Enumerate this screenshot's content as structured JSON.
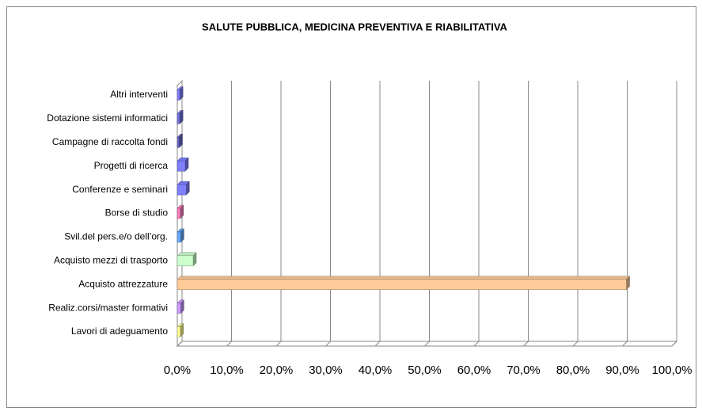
{
  "chart_data": {
    "type": "bar",
    "orientation": "horizontal",
    "title": "SALUTE PUBBLICA, MEDICINA PREVENTIVA E RIABILITATIVA",
    "categories": [
      "Altri interventi",
      "Dotazione sistemi informatici",
      "Campagne di raccolta fondi",
      "Progetti di ricerca",
      "Conferenze e seminari",
      "Borse di studio",
      "Svil.del pers.e/o dell’org.",
      "Acquisto mezzi di trasporto",
      "Acquisto attrezzature",
      "Realiz.corsi/master formativi",
      "Lavori di adeguamento"
    ],
    "values": [
      0.5,
      0.5,
      0.4,
      1.6,
      1.8,
      0.6,
      0.7,
      3.2,
      90.8,
      0.7,
      0.6
    ],
    "colors": [
      "#8080ff",
      "#7373e0",
      "#6a6acc",
      "#8080ff",
      "#8080ff",
      "#ff80c0",
      "#66aaff",
      "#ccffcc",
      "#ffcc99",
      "#cc99ff",
      "#ffff99"
    ],
    "xlim": [
      0,
      100
    ],
    "xticks": [
      {
        "value": 0,
        "label": "0,0%"
      },
      {
        "value": 10,
        "label": "10,0%"
      },
      {
        "value": 20,
        "label": "20,0%"
      },
      {
        "value": 30,
        "label": "30,0%"
      },
      {
        "value": 40,
        "label": "40,0%"
      },
      {
        "value": 50,
        "label": "50,0%"
      },
      {
        "value": 60,
        "label": "60,0%"
      },
      {
        "value": 70,
        "label": "70,0%"
      },
      {
        "value": 80,
        "label": "80,0%"
      },
      {
        "value": 90,
        "label": "90,0%"
      },
      {
        "value": 100,
        "label": "100,0%"
      }
    ],
    "grid": true
  }
}
